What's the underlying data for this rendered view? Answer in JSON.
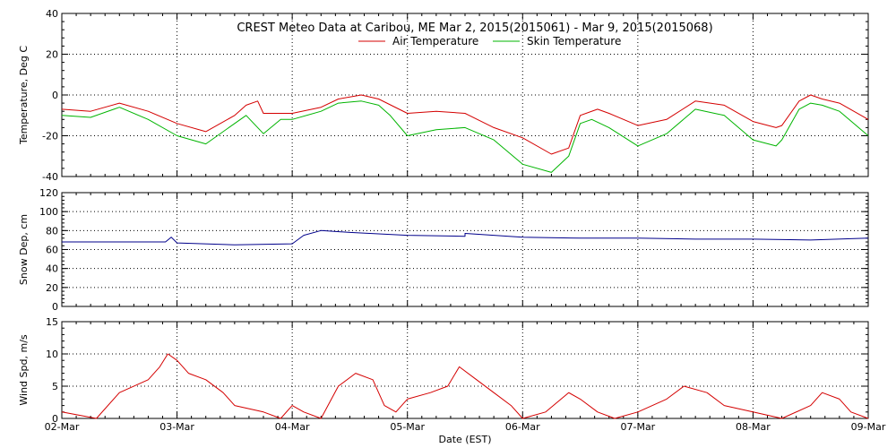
{
  "chart_data": [
    {
      "type": "line",
      "title": "CREST Meteo Data at Caribou, ME   Mar  2, 2015(2015061) - Mar  9, 2015(2015068)",
      "xlabel": "Date (EST)",
      "ylabel": "Temperature, Deg C",
      "xlim": [
        0,
        7
      ],
      "ylim": [
        -40,
        40
      ],
      "yticks": [
        -40,
        -20,
        0,
        20,
        40
      ],
      "grid": true,
      "legend": "top-center",
      "series": [
        {
          "name": "Air Temperature",
          "color": "#d40000",
          "x": [
            0,
            0.25,
            0.5,
            0.75,
            1.0,
            1.25,
            1.5,
            1.6,
            1.7,
            1.75,
            1.9,
            2.0,
            2.25,
            2.4,
            2.6,
            2.75,
            3.0,
            3.25,
            3.5,
            3.75,
            4.0,
            4.25,
            4.4,
            4.5,
            4.65,
            4.75,
            5.0,
            5.25,
            5.5,
            5.75,
            6.0,
            6.2,
            6.25,
            6.4,
            6.5,
            6.6,
            6.75,
            7.0
          ],
          "y": [
            -7,
            -8,
            -4,
            -8,
            -14,
            -18,
            -10,
            -5,
            -3,
            -9,
            -9,
            -9,
            -6,
            -2,
            0,
            -2,
            -9,
            -8,
            -9,
            -16,
            -21,
            -29,
            -26,
            -10,
            -7,
            -9,
            -15,
            -12,
            -3,
            -5,
            -13,
            -16,
            -15,
            -3,
            0,
            -2,
            -4,
            -12
          ]
        },
        {
          "name": "Skin Temperature",
          "color": "#00b400",
          "x": [
            0,
            0.25,
            0.5,
            0.75,
            1.0,
            1.25,
            1.5,
            1.6,
            1.75,
            1.9,
            2.0,
            2.25,
            2.4,
            2.6,
            2.75,
            2.85,
            3.0,
            3.25,
            3.5,
            3.75,
            4.0,
            4.25,
            4.4,
            4.5,
            4.6,
            4.75,
            5.0,
            5.25,
            5.5,
            5.75,
            6.0,
            6.2,
            6.25,
            6.4,
            6.5,
            6.6,
            6.75,
            7.0
          ],
          "y": [
            -10,
            -11,
            -6,
            -12,
            -20,
            -24,
            -14,
            -10,
            -19,
            -12,
            -12,
            -8,
            -4,
            -3,
            -5,
            -10,
            -20,
            -17,
            -16,
            -22,
            -34,
            -38,
            -30,
            -14,
            -12,
            -16,
            -25,
            -19,
            -7,
            -10,
            -22,
            -25,
            -22,
            -7,
            -4,
            -5,
            -8,
            -20
          ]
        }
      ]
    },
    {
      "type": "line",
      "xlabel": "",
      "ylabel": "Snow Dep, cm",
      "xlim": [
        0,
        7
      ],
      "ylim": [
        0,
        120
      ],
      "yticks": [
        0,
        20,
        40,
        60,
        80,
        100,
        120
      ],
      "grid": true,
      "series": [
        {
          "name": "",
          "color": "#00008b",
          "x": [
            0,
            0.5,
            0.9,
            0.95,
            1.0,
            1.5,
            2.0,
            2.1,
            2.25,
            2.5,
            3.0,
            3.5,
            3.5,
            4.0,
            4.5,
            5.0,
            5.5,
            6.0,
            6.5,
            7.0
          ],
          "y": [
            68,
            68,
            68,
            73,
            67,
            65,
            66,
            75,
            80,
            78,
            75,
            74,
            77,
            73,
            72,
            72,
            71,
            71,
            70,
            72
          ]
        }
      ]
    },
    {
      "type": "line",
      "xlabel": "Date (EST)",
      "ylabel": "Wind Spd, m/s",
      "xlim": [
        0,
        7
      ],
      "ylim": [
        0,
        15
      ],
      "yticks": [
        0,
        5,
        10,
        15
      ],
      "xtick_labels": [
        "02-Mar",
        "03-Mar",
        "04-Mar",
        "05-Mar",
        "06-Mar",
        "07-Mar",
        "08-Mar",
        "09-Mar"
      ],
      "grid": true,
      "series": [
        {
          "name": "",
          "color": "#d40000",
          "x": [
            0,
            0.15,
            0.3,
            0.5,
            0.75,
            0.85,
            0.92,
            1.0,
            1.1,
            1.25,
            1.4,
            1.5,
            1.75,
            1.9,
            2.0,
            2.1,
            2.25,
            2.4,
            2.55,
            2.7,
            2.8,
            2.9,
            3.0,
            3.2,
            3.35,
            3.45,
            3.6,
            3.75,
            3.9,
            4.0,
            4.2,
            4.4,
            4.5,
            4.65,
            4.8,
            5.0,
            5.25,
            5.4,
            5.6,
            5.75,
            6.0,
            6.25,
            6.5,
            6.6,
            6.75,
            6.85,
            7.0
          ],
          "y": [
            1,
            0.5,
            0,
            4,
            6,
            8,
            10,
            9,
            7,
            6,
            4,
            2,
            1,
            0,
            2,
            1,
            0,
            5,
            7,
            6,
            2,
            1,
            3,
            4,
            5,
            8,
            6,
            4,
            2,
            0,
            1,
            4,
            3,
            1,
            0,
            1,
            3,
            5,
            4,
            2,
            1,
            0,
            2,
            4,
            3,
            1,
            0
          ]
        }
      ]
    }
  ]
}
